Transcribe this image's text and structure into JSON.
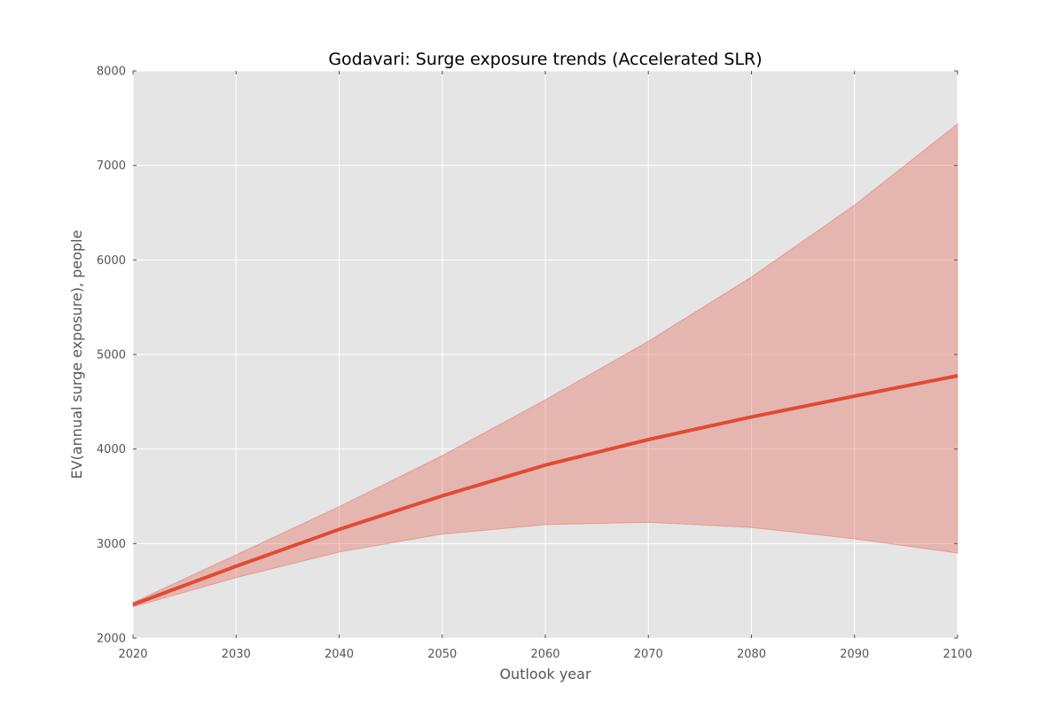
{
  "chart_data": {
    "type": "line",
    "title": "Godavari: Surge exposure trends (Accelerated SLR)",
    "xlabel": "Outlook year",
    "ylabel": "EV(annual surge exposure), people",
    "x": [
      2020,
      2030,
      2040,
      2050,
      2060,
      2070,
      2080,
      2090,
      2100
    ],
    "xlim": [
      2020,
      2100
    ],
    "ylim": [
      2000,
      8000
    ],
    "xticks": [
      2020,
      2030,
      2040,
      2050,
      2060,
      2070,
      2080,
      2090,
      2100
    ],
    "yticks": [
      2000,
      3000,
      4000,
      5000,
      6000,
      7000,
      8000
    ],
    "grid": true,
    "series": [
      {
        "values": [
          2355,
          2760,
          3150,
          3505,
          3830,
          4100,
          4340,
          4560,
          4775
        ],
        "band_low": [
          2330,
          2640,
          2910,
          3100,
          3200,
          3225,
          3170,
          3050,
          2900
        ],
        "band_high": [
          2375,
          2880,
          3390,
          3930,
          4520,
          5140,
          5820,
          6580,
          7440
        ]
      }
    ],
    "colors": {
      "plot_background": "#e5e5e5",
      "line": "#e24a33",
      "band": "#e24a33"
    }
  }
}
